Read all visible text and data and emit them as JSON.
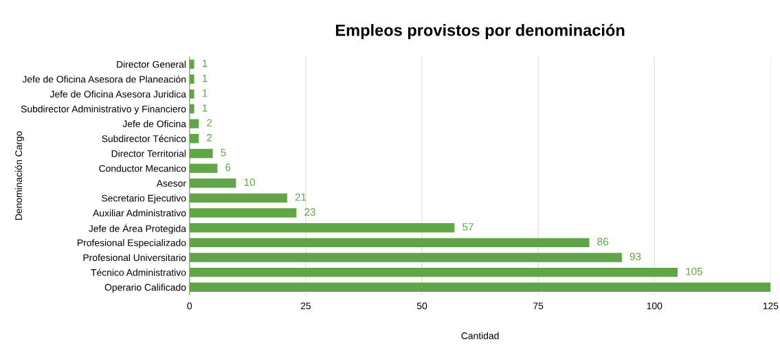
{
  "chart_data": {
    "type": "bar",
    "orientation": "horizontal",
    "title": "Empleos provistos por denominación",
    "xlabel": "Cantidad",
    "ylabel": "Denominación Cargo",
    "categories": [
      "Director General",
      "Jefe de Oficina Asesora de Planeación",
      "Jefe de Oficina Asesora Juridica",
      "Subdirector Administrativo y Financiero",
      "Jefe de Oficina",
      "Subdirector Técnico",
      "Director Territorial",
      "Conductor Mecanico",
      "Asesor",
      "Secretario Ejecutivo",
      "Auxiliar Administrativo",
      "Jefe de Área Protegida",
      "Profesional Especializado",
      "Profesional Universitario",
      "Técnico Administrativo",
      "Operario Calificado"
    ],
    "values": [
      1,
      1,
      1,
      1,
      2,
      2,
      5,
      6,
      10,
      21,
      23,
      57,
      86,
      93,
      105,
      125
    ],
    "value_labels": [
      "1",
      "1",
      "1",
      "1",
      "2",
      "2",
      "5",
      "6",
      "10",
      "21",
      "23",
      "57",
      "86",
      "93",
      "105",
      null
    ],
    "color": "#62a548",
    "xlim": [
      0,
      125
    ],
    "xticks": [
      0,
      25,
      50,
      75,
      100,
      125
    ],
    "grid": "x"
  }
}
